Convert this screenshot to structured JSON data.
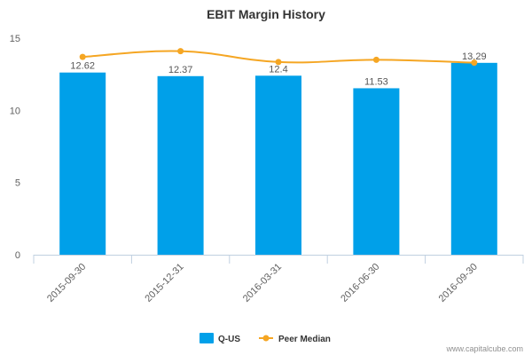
{
  "chart_data": {
    "type": "bar",
    "title": "EBIT Margin History",
    "xlabel": "",
    "ylabel": "",
    "categories": [
      "2015-09-30",
      "2015-12-31",
      "2016-03-31",
      "2016-06-30",
      "2016-09-30"
    ],
    "ylim": [
      0,
      15
    ],
    "yticks": [
      "0",
      "5",
      "10",
      "15"
    ],
    "series": [
      {
        "name": "Q-US",
        "type": "bar",
        "color": "#00a0e9",
        "values": [
          12.62,
          12.37,
          12.4,
          11.53,
          13.29
        ],
        "labels": [
          "12.62",
          "12.37",
          "12.4",
          "11.53",
          "13.29"
        ]
      },
      {
        "name": "Peer Median",
        "type": "line",
        "color": "#f5a623",
        "values": [
          13.7,
          14.1,
          13.35,
          13.5,
          13.3
        ]
      }
    ],
    "grid": false,
    "legend_position": "bottom"
  },
  "credit": "www.capitalcube.com"
}
